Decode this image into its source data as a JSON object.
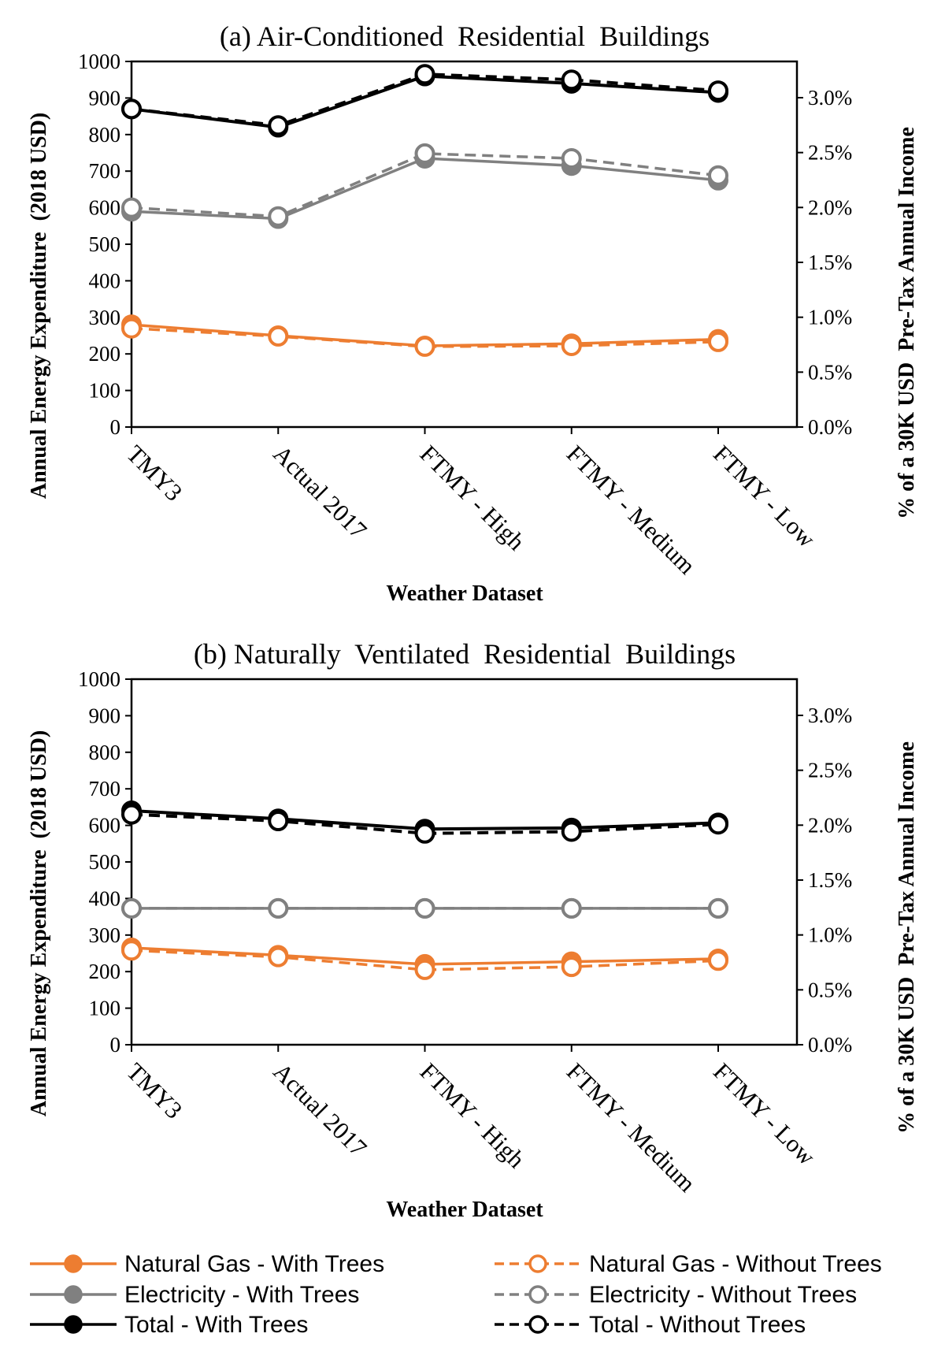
{
  "chart_data": [
    {
      "type": "line",
      "title": "(a) Air-Conditioned  Residential  Buildings",
      "xlabel": "Weather Dataset",
      "ylabel": "Annual Energy Expenditure  (2018 USD)",
      "y2label": "% of a 30K USD  Pre-Tax Annual Income",
      "categories": [
        "TMY3",
        "Actual 2017",
        "FTMY - High",
        "FTMY - Medium",
        "FTMY - Low"
      ],
      "ylim": [
        0,
        1000
      ],
      "yticks": [
        "0",
        "100",
        "200",
        "300",
        "400",
        "500",
        "600",
        "700",
        "800",
        "900",
        "1000"
      ],
      "y2lim": [
        0,
        0.0333
      ],
      "y2ticks": [
        "0.0%",
        "0.5%",
        "1.0%",
        "1.5%",
        "2.0%",
        "2.5%",
        "3.0%"
      ],
      "series": [
        {
          "name": "Natural Gas - With Trees",
          "color": "#ED7D31",
          "dashed": false,
          "filled": true,
          "values": [
            280,
            250,
            222,
            228,
            240
          ]
        },
        {
          "name": "Natural Gas - Without Trees",
          "color": "#ED7D31",
          "dashed": true,
          "filled": false,
          "values": [
            270,
            248,
            220,
            222,
            233
          ]
        },
        {
          "name": "Electricity - With Trees",
          "color": "#808080",
          "dashed": false,
          "filled": true,
          "values": [
            590,
            570,
            735,
            715,
            675
          ]
        },
        {
          "name": "Electricity - Without Trees",
          "color": "#808080",
          "dashed": true,
          "filled": false,
          "values": [
            600,
            576,
            748,
            735,
            688
          ]
        },
        {
          "name": "Total - With Trees",
          "color": "#000000",
          "dashed": false,
          "filled": true,
          "values": [
            870,
            820,
            960,
            940,
            915
          ]
        },
        {
          "name": "Total - Without Trees",
          "color": "#000000",
          "dashed": true,
          "filled": false,
          "values": [
            870,
            825,
            965,
            950,
            920
          ]
        }
      ]
    },
    {
      "type": "line",
      "title": "(b) Naturally  Ventilated  Residential  Buildings",
      "xlabel": "Weather Dataset",
      "ylabel": "Annual Energy Expenditure  (2018 USD)",
      "y2label": "% of a 30K USD  Pre-Tax Annual Income",
      "categories": [
        "TMY3",
        "Actual 2017",
        "FTMY - High",
        "FTMY - Medium",
        "FTMY - Low"
      ],
      "ylim": [
        0,
        1000
      ],
      "yticks": [
        "0",
        "100",
        "200",
        "300",
        "400",
        "500",
        "600",
        "700",
        "800",
        "900",
        "1000"
      ],
      "y2lim": [
        0,
        0.0333
      ],
      "y2ticks": [
        "0.0%",
        "0.5%",
        "1.0%",
        "1.5%",
        "2.0%",
        "2.5%",
        "3.0%"
      ],
      "series": [
        {
          "name": "Natural Gas - With Trees",
          "color": "#ED7D31",
          "dashed": false,
          "filled": true,
          "values": [
            265,
            245,
            220,
            227,
            235
          ]
        },
        {
          "name": "Natural Gas - Without Trees",
          "color": "#ED7D31",
          "dashed": true,
          "filled": false,
          "values": [
            258,
            240,
            205,
            213,
            230
          ]
        },
        {
          "name": "Electricity - With Trees",
          "color": "#808080",
          "dashed": false,
          "filled": true,
          "values": [
            373,
            373,
            373,
            373,
            373
          ]
        },
        {
          "name": "Electricity - Without Trees",
          "color": "#808080",
          "dashed": true,
          "filled": false,
          "values": [
            373,
            373,
            373,
            373,
            373
          ]
        },
        {
          "name": "Total - With Trees",
          "color": "#000000",
          "dashed": false,
          "filled": true,
          "values": [
            640,
            618,
            590,
            593,
            607
          ]
        },
        {
          "name": "Total - Without Trees",
          "color": "#000000",
          "dashed": true,
          "filled": false,
          "values": [
            630,
            612,
            578,
            583,
            603
          ]
        }
      ]
    }
  ],
  "legend": {
    "items": [
      {
        "label": "Natural Gas - With Trees",
        "color": "#ED7D31",
        "dashed": false,
        "filled": true
      },
      {
        "label": "Natural Gas - Without Trees",
        "color": "#ED7D31",
        "dashed": true,
        "filled": false
      },
      {
        "label": "Electricity - With Trees",
        "color": "#808080",
        "dashed": false,
        "filled": true
      },
      {
        "label": "Electricity - Without Trees",
        "color": "#808080",
        "dashed": true,
        "filled": false
      },
      {
        "label": "Total - With Trees",
        "color": "#000000",
        "dashed": false,
        "filled": true
      },
      {
        "label": "Total - Without Trees",
        "color": "#000000",
        "dashed": true,
        "filled": false
      }
    ]
  }
}
